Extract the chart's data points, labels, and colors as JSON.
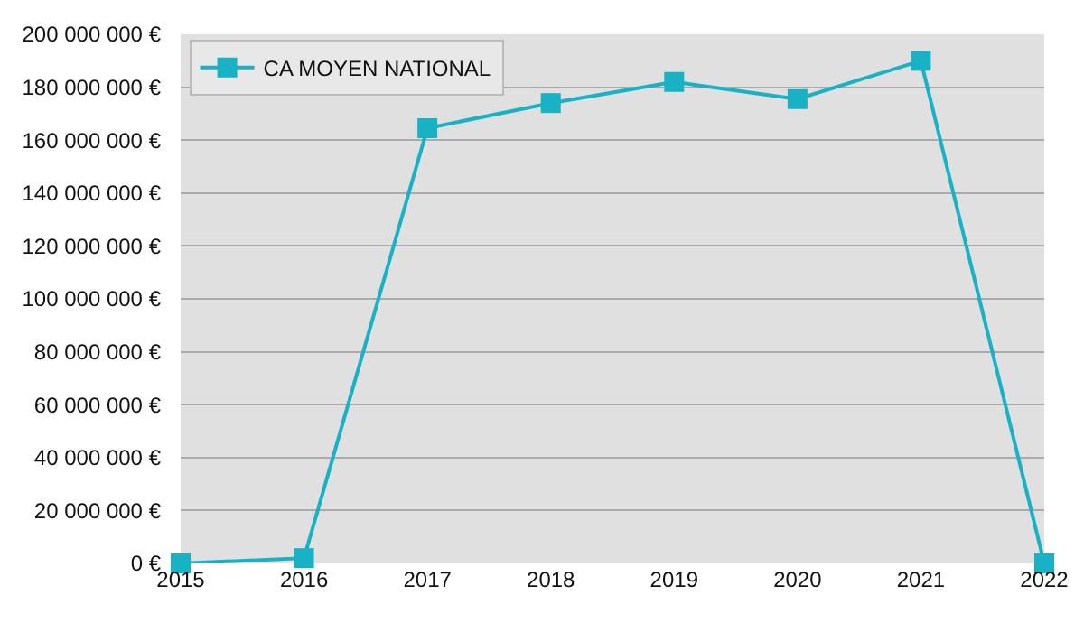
{
  "chart_data": {
    "type": "line",
    "x": [
      2015,
      2016,
      2017,
      2018,
      2019,
      2020,
      2021,
      2022
    ],
    "series": [
      {
        "name": "CA MOYEN NATIONAL",
        "color": "#19b1c4",
        "values": [
          0,
          2000000,
          164500000,
          174000000,
          182000000,
          175500000,
          190000000,
          0
        ]
      }
    ],
    "xlim": [
      2015,
      2022
    ],
    "xticks": [
      2015,
      2016,
      2017,
      2018,
      2019,
      2020,
      2021,
      2022
    ],
    "ylim": [
      0,
      200000000
    ],
    "yticks": [
      {
        "value": 0,
        "label": "0 €"
      },
      {
        "value": 20000000,
        "label": "20 000 000 €"
      },
      {
        "value": 40000000,
        "label": "40 000 000 €"
      },
      {
        "value": 60000000,
        "label": "60 000 000 €"
      },
      {
        "value": 80000000,
        "label": "80 000 000 €"
      },
      {
        "value": 100000000,
        "label": "100 000 000 €"
      },
      {
        "value": 120000000,
        "label": "120 000 000 €"
      },
      {
        "value": 140000000,
        "label": "140 000 000 €"
      },
      {
        "value": 160000000,
        "label": "160 000 000 €"
      },
      {
        "value": 180000000,
        "label": "180 000 000 €"
      },
      {
        "value": 200000000,
        "label": "200 000 000 €"
      }
    ],
    "grid": "y",
    "legend": "top left",
    "marker": "square",
    "line_style": "solid"
  }
}
